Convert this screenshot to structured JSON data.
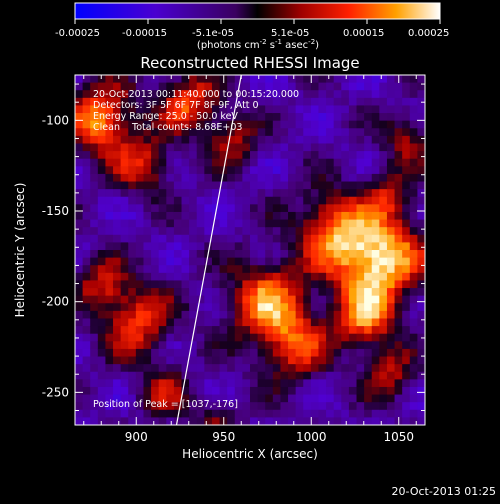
{
  "colorbar": {
    "ticks": [
      "-0.00025",
      "-0.00015",
      "-5.1e-05",
      "5.1e-05",
      "0.00015",
      "0.00025"
    ],
    "units_prefix": "(photons cm",
    "units_sup1": "-2",
    "units_mid": " s",
    "units_sup2": "-1",
    "units_mid2": " asec",
    "units_sup3": "-2",
    "units_suffix": ")"
  },
  "chart_data": {
    "type": "heatmap",
    "title": "Reconstructed RHESSI Image",
    "xlabel": "Heliocentric X (arcsec)",
    "ylabel": "Heliocentric Y (arcsec)",
    "xlim": [
      865,
      1065
    ],
    "ylim": [
      -268,
      -75
    ],
    "x_ticks": [
      900,
      950,
      1000,
      1050
    ],
    "y_ticks": [
      -100,
      -150,
      -200,
      -250
    ],
    "clim": [
      -0.00025,
      0.00025
    ],
    "colormap": "RHESSI color table: blue-violet (negative) through black, red, orange to white (positive)",
    "limb_line": [
      [
        923,
        -268
      ],
      [
        960,
        -75
      ]
    ],
    "info_lines": [
      "20-Oct-2013 00:11:40.000 to 00:15:20.000",
      "Detectors: 3F 5F 6F 7F 8F 9F, Att 0",
      "Energy Range: 25.0 - 50.0 keV",
      "Clean    Total counts: 8.68E+03"
    ],
    "peak_label": "Position of Peak = [1037,-176]",
    "peak": [
      1037,
      -176
    ],
    "sources": [
      {
        "x": 1037,
        "y": -176,
        "amp": 1.0,
        "sigma": 18
      },
      {
        "x": 1010,
        "y": -158,
        "amp": 0.55,
        "sigma": 14
      },
      {
        "x": 1030,
        "y": -210,
        "amp": 0.6,
        "sigma": 12
      },
      {
        "x": 1045,
        "y": -240,
        "amp": 0.45,
        "sigma": 10
      },
      {
        "x": 975,
        "y": -200,
        "amp": 0.7,
        "sigma": 16
      },
      {
        "x": 990,
        "y": -225,
        "amp": 0.55,
        "sigma": 13
      },
      {
        "x": 900,
        "y": -210,
        "amp": 0.6,
        "sigma": 14
      },
      {
        "x": 880,
        "y": -190,
        "amp": 0.45,
        "sigma": 10
      },
      {
        "x": 880,
        "y": -100,
        "amp": 0.75,
        "sigma": 14
      },
      {
        "x": 905,
        "y": -125,
        "amp": 0.5,
        "sigma": 11
      },
      {
        "x": 930,
        "y": -90,
        "amp": 0.6,
        "sigma": 12
      },
      {
        "x": 955,
        "y": -110,
        "amp": 0.45,
        "sigma": 10
      },
      {
        "x": 1055,
        "y": -110,
        "amp": 0.4,
        "sigma": 10
      },
      {
        "x": 1045,
        "y": -140,
        "amp": 0.35,
        "sigma": 9
      },
      {
        "x": 915,
        "y": -250,
        "amp": 0.4,
        "sigma": 10
      },
      {
        "x": 945,
        "y": -265,
        "amp": 0.3,
        "sigma": 9
      }
    ]
  },
  "timestamp": "20-Oct-2013 01:25"
}
